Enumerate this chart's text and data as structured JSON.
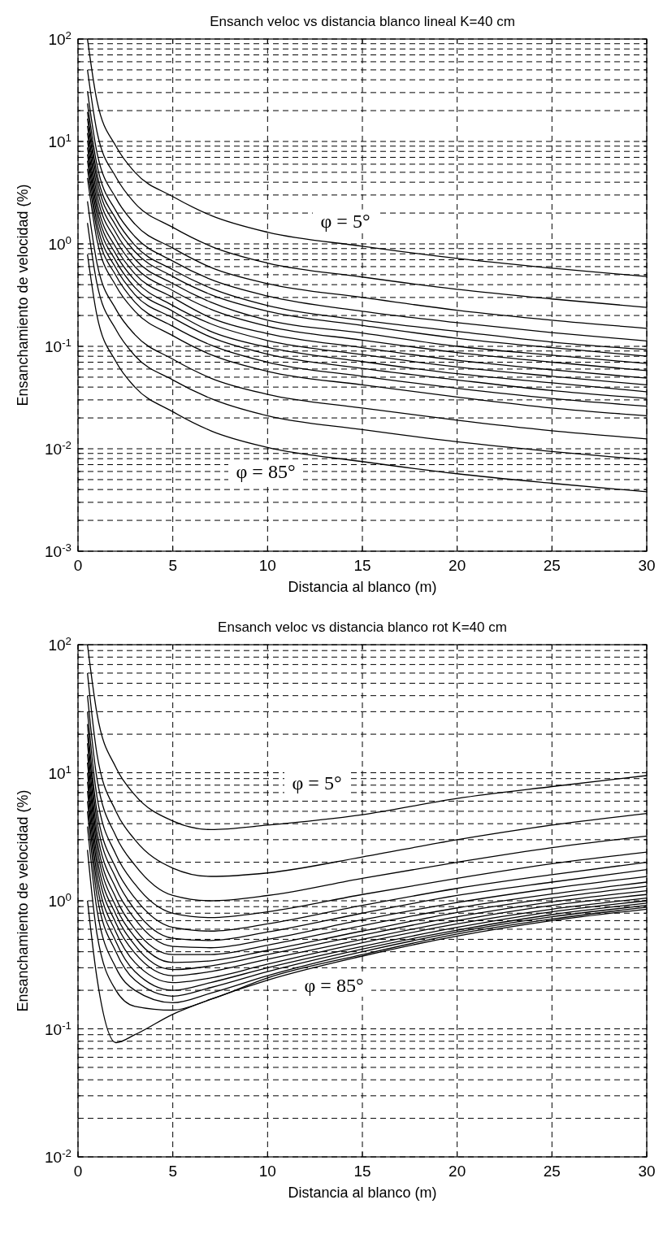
{
  "chart_data": [
    {
      "type": "line",
      "title": "Ensanch veloc vs distancia blanco lineal K=40 cm",
      "xlabel": "Distancia al blanco (m)",
      "ylabel": "Ensanchamiento de velocidad (%)",
      "log": "y",
      "grid": true,
      "marker": "none",
      "line_style": "solid",
      "xlim": [
        0,
        30
      ],
      "xticks": [
        0,
        5,
        10,
        15,
        20,
        25,
        30
      ],
      "ylim": [
        0.001,
        100
      ],
      "yticks": [
        {
          "value": 0.001,
          "label": "10$^{-3}$"
        },
        {
          "value": 0.002,
          "label": null
        },
        {
          "value": 0.003,
          "label": null
        },
        {
          "value": 0.004,
          "label": null
        },
        {
          "value": 0.005,
          "label": null
        },
        {
          "value": 0.006,
          "label": null
        },
        {
          "value": 0.007,
          "label": null
        },
        {
          "value": 0.008,
          "label": null
        },
        {
          "value": 0.009,
          "label": null
        },
        {
          "value": 0.01,
          "label": "10$^{-2}$"
        },
        {
          "value": 0.02,
          "label": null
        },
        {
          "value": 0.03,
          "label": null
        },
        {
          "value": 0.04,
          "label": null
        },
        {
          "value": 0.05,
          "label": null
        },
        {
          "value": 0.06,
          "label": null
        },
        {
          "value": 0.07,
          "label": null
        },
        {
          "value": 0.08,
          "label": null
        },
        {
          "value": 0.09,
          "label": null
        },
        {
          "value": 0.1,
          "label": "10$^{-1}$"
        },
        {
          "value": 0.2,
          "label": null
        },
        {
          "value": 0.3,
          "label": null
        },
        {
          "value": 0.4,
          "label": null
        },
        {
          "value": 0.5,
          "label": null
        },
        {
          "value": 0.6,
          "label": null
        },
        {
          "value": 0.7,
          "label": null
        },
        {
          "value": 0.8,
          "label": null
        },
        {
          "value": 0.9,
          "label": null
        },
        {
          "value": 1,
          "label": "10$^{0}$"
        },
        {
          "value": 2,
          "label": null
        },
        {
          "value": 3,
          "label": null
        },
        {
          "value": 4,
          "label": null
        },
        {
          "value": 5,
          "label": null
        },
        {
          "value": 6,
          "label": null
        },
        {
          "value": 7,
          "label": null
        },
        {
          "value": 8,
          "label": null
        },
        {
          "value": 9,
          "label": null
        },
        {
          "value": 10,
          "label": "10$^{1}$"
        },
        {
          "value": 20,
          "label": null
        },
        {
          "value": 30,
          "label": null
        },
        {
          "value": 40,
          "label": null
        },
        {
          "value": 50,
          "label": null
        },
        {
          "value": 60,
          "label": null
        },
        {
          "value": 70,
          "label": null
        },
        {
          "value": 80,
          "label": null
        },
        {
          "value": 90,
          "label": null
        },
        {
          "value": 100,
          "label": "10$^{2}$"
        }
      ],
      "x": [
        0.5,
        1,
        2,
        3,
        5,
        7,
        10,
        15,
        20,
        25,
        30
      ],
      "series": [
        {
          "color": "#000000",
          "values": [
            100,
            25,
            9,
            5,
            2.9,
            1.9,
            1.3,
            0.95,
            0.72,
            0.58,
            0.48
          ]
        },
        {
          "color": "#000000",
          "values": [
            50,
            12.5,
            4.5,
            2.5,
            1.45,
            0.95,
            0.65,
            0.475,
            0.36,
            0.29,
            0.24
          ]
        },
        {
          "color": "#000000",
          "values": [
            31,
            7.8,
            2.8,
            1.56,
            0.91,
            0.59,
            0.41,
            0.3,
            0.225,
            0.18,
            0.15
          ]
        },
        {
          "color": "#000000",
          "values": [
            23.5,
            5.9,
            2.1,
            1.18,
            0.68,
            0.45,
            0.31,
            0.22,
            0.17,
            0.136,
            0.113
          ]
        },
        {
          "color": "#000000",
          "values": [
            19.4,
            4.85,
            1.75,
            0.97,
            0.56,
            0.37,
            0.25,
            0.18,
            0.14,
            0.11,
            0.093
          ]
        },
        {
          "color": "#000000",
          "values": [
            16.7,
            4.2,
            1.5,
            0.84,
            0.48,
            0.32,
            0.22,
            0.16,
            0.12,
            0.097,
            0.08
          ]
        },
        {
          "color": "#000000",
          "values": [
            14.2,
            3.55,
            1.28,
            0.71,
            0.41,
            0.27,
            0.18,
            0.135,
            0.1,
            0.082,
            0.068
          ]
        },
        {
          "color": "#000000",
          "values": [
            12.1,
            3,
            1.09,
            0.6,
            0.35,
            0.23,
            0.157,
            0.115,
            0.087,
            0.07,
            0.058
          ]
        },
        {
          "color": "#000000",
          "values": [
            10.2,
            2.55,
            0.92,
            0.51,
            0.3,
            0.19,
            0.133,
            0.097,
            0.073,
            0.059,
            0.049
          ]
        },
        {
          "color": "#000000",
          "values": [
            8.75,
            2.2,
            0.79,
            0.44,
            0.25,
            0.166,
            0.114,
            0.083,
            0.063,
            0.051,
            0.042
          ]
        },
        {
          "color": "#000000",
          "values": [
            7.5,
            1.9,
            0.68,
            0.375,
            0.22,
            0.14,
            0.098,
            0.071,
            0.054,
            0.044,
            0.036
          ]
        },
        {
          "color": "#000000",
          "values": [
            6.5,
            1.6,
            0.58,
            0.32,
            0.19,
            0.123,
            0.084,
            0.061,
            0.047,
            0.037,
            0.031
          ]
        },
        {
          "color": "#000000",
          "values": [
            5.4,
            1.36,
            0.49,
            0.27,
            0.157,
            0.103,
            0.07,
            0.051,
            0.039,
            0.031,
            0.026
          ]
        },
        {
          "color": "#000000",
          "values": [
            4.4,
            1.1,
            0.39,
            0.22,
            0.127,
            0.083,
            0.057,
            0.042,
            0.032,
            0.025,
            0.021
          ]
        },
        {
          "color": "#000000",
          "values": [
            2.6,
            0.65,
            0.23,
            0.13,
            0.075,
            0.049,
            0.034,
            0.025,
            0.019,
            0.015,
            0.0125
          ]
        },
        {
          "color": "#000000",
          "values": [
            1.6,
            0.41,
            0.146,
            0.081,
            0.047,
            0.031,
            0.021,
            0.0154,
            0.0117,
            0.0094,
            0.0078
          ]
        },
        {
          "color": "#000000",
          "values": [
            0.79,
            0.2,
            0.071,
            0.04,
            0.023,
            0.015,
            0.0103,
            0.0075,
            0.0057,
            0.0046,
            0.0038
          ]
        }
      ],
      "annotations": [
        "φ = 5°",
        "φ = 85°"
      ]
    },
    {
      "type": "line",
      "title": "Ensanch veloc vs distancia blanco rot K=40 cm",
      "xlabel": "Distancia al blanco (m)",
      "ylabel": "Ensanchamiento de velocidad (%)",
      "log": "y",
      "grid": true,
      "marker": "none",
      "line_style": "solid",
      "xlim": [
        0,
        30
      ],
      "xticks": [
        0,
        5,
        10,
        15,
        20,
        25,
        30
      ],
      "ylim": [
        0.01,
        100
      ],
      "yticks": [
        {
          "value": 0.01,
          "label": "10$^{-2}$"
        },
        {
          "value": 0.02,
          "label": null
        },
        {
          "value": 0.03,
          "label": null
        },
        {
          "value": 0.04,
          "label": null
        },
        {
          "value": 0.05,
          "label": null
        },
        {
          "value": 0.06,
          "label": null
        },
        {
          "value": 0.07,
          "label": null
        },
        {
          "value": 0.08,
          "label": null
        },
        {
          "value": 0.09,
          "label": null
        },
        {
          "value": 0.1,
          "label": "10$^{-1}$"
        },
        {
          "value": 0.2,
          "label": null
        },
        {
          "value": 0.3,
          "label": null
        },
        {
          "value": 0.4,
          "label": null
        },
        {
          "value": 0.5,
          "label": null
        },
        {
          "value": 0.6,
          "label": null
        },
        {
          "value": 0.7,
          "label": null
        },
        {
          "value": 0.8,
          "label": null
        },
        {
          "value": 0.9,
          "label": null
        },
        {
          "value": 1,
          "label": "10$^{0}$"
        },
        {
          "value": 2,
          "label": null
        },
        {
          "value": 3,
          "label": null
        },
        {
          "value": 4,
          "label": null
        },
        {
          "value": 5,
          "label": null
        },
        {
          "value": 6,
          "label": null
        },
        {
          "value": 7,
          "label": null
        },
        {
          "value": 8,
          "label": null
        },
        {
          "value": 9,
          "label": null
        },
        {
          "value": 10,
          "label": "10$^{1}$"
        },
        {
          "value": 20,
          "label": null
        },
        {
          "value": 30,
          "label": null
        },
        {
          "value": 40,
          "label": null
        },
        {
          "value": 50,
          "label": null
        },
        {
          "value": 60,
          "label": null
        },
        {
          "value": 70,
          "label": null
        },
        {
          "value": 80,
          "label": null
        },
        {
          "value": 90,
          "label": null
        },
        {
          "value": 100,
          "label": "10$^{2}$"
        }
      ],
      "x": [
        0.5,
        1,
        2,
        3,
        5,
        7,
        10,
        15,
        20,
        25,
        30
      ],
      "series": [
        {
          "color": "#000000",
          "values": [
            100,
            29,
            11,
            6.7,
            4.2,
            3.6,
            3.9,
            4.7,
            6.3,
            7.8,
            9.5
          ]
        },
        {
          "color": "#000000",
          "values": [
            60,
            14,
            5,
            3,
            1.8,
            1.55,
            1.65,
            2.2,
            3,
            3.9,
            4.8
          ]
        },
        {
          "color": "#000000",
          "values": [
            40,
            9,
            3.2,
            1.9,
            1.1,
            1,
            1.1,
            1.5,
            2,
            2.6,
            3.2
          ]
        },
        {
          "color": "#000000",
          "values": [
            30,
            6.5,
            2.3,
            1.35,
            0.8,
            0.74,
            0.82,
            1.12,
            1.5,
            1.95,
            2.4
          ]
        },
        {
          "color": "#000000",
          "values": [
            24,
            5,
            1.8,
            1.05,
            0.62,
            0.58,
            0.66,
            0.92,
            1.25,
            1.6,
            2
          ]
        },
        {
          "color": "#000000",
          "values": [
            20,
            4.2,
            1.5,
            0.85,
            0.51,
            0.49,
            0.57,
            0.8,
            1.1,
            1.4,
            1.75
          ]
        },
        {
          "color": "#000000",
          "values": [
            17,
            3.5,
            1.25,
            0.72,
            0.44,
            0.43,
            0.5,
            0.71,
            0.97,
            1.25,
            1.55
          ]
        },
        {
          "color": "#000000",
          "values": [
            14,
            3,
            1.05,
            0.6,
            0.38,
            0.38,
            0.45,
            0.64,
            0.88,
            1.13,
            1.4
          ]
        },
        {
          "color": "#000000",
          "values": [
            12,
            2.6,
            0.9,
            0.52,
            0.33,
            0.34,
            0.41,
            0.58,
            0.81,
            1.05,
            1.3
          ]
        },
        {
          "color": "#000000",
          "values": [
            10,
            2.2,
            0.78,
            0.45,
            0.29,
            0.31,
            0.38,
            0.54,
            0.75,
            0.98,
            1.2
          ]
        },
        {
          "color": "#000000",
          "values": [
            8.5,
            1.9,
            0.67,
            0.39,
            0.26,
            0.28,
            0.35,
            0.5,
            0.7,
            0.92,
            1.12
          ]
        },
        {
          "color": "#000000",
          "values": [
            7.2,
            1.6,
            0.57,
            0.33,
            0.23,
            0.25,
            0.32,
            0.47,
            0.66,
            0.86,
            1.05
          ]
        },
        {
          "color": "#000000",
          "values": [
            6,
            1.35,
            0.48,
            0.28,
            0.2,
            0.23,
            0.3,
            0.44,
            0.62,
            0.82,
            1
          ]
        },
        {
          "color": "#000000",
          "values": [
            5,
            1.1,
            0.4,
            0.24,
            0.18,
            0.21,
            0.28,
            0.42,
            0.59,
            0.78,
            0.96
          ]
        },
        {
          "color": "#000000",
          "values": [
            3.8,
            0.85,
            0.3,
            0.2,
            0.16,
            0.19,
            0.26,
            0.4,
            0.57,
            0.75,
            0.92
          ]
        },
        {
          "color": "#000000",
          "values": [
            2.5,
            0.55,
            0.2,
            0.15,
            0.14,
            0.17,
            0.25,
            0.38,
            0.55,
            0.72,
            0.89
          ]
        },
        {
          "color": "#000000",
          "values": [
            1,
            0.25,
            0.078,
            0.09,
            0.13,
            0.17,
            0.24,
            0.37,
            0.53,
            0.7,
            0.86
          ]
        }
      ],
      "annotations": [
        "φ = 5°",
        "φ = 85°"
      ]
    }
  ]
}
